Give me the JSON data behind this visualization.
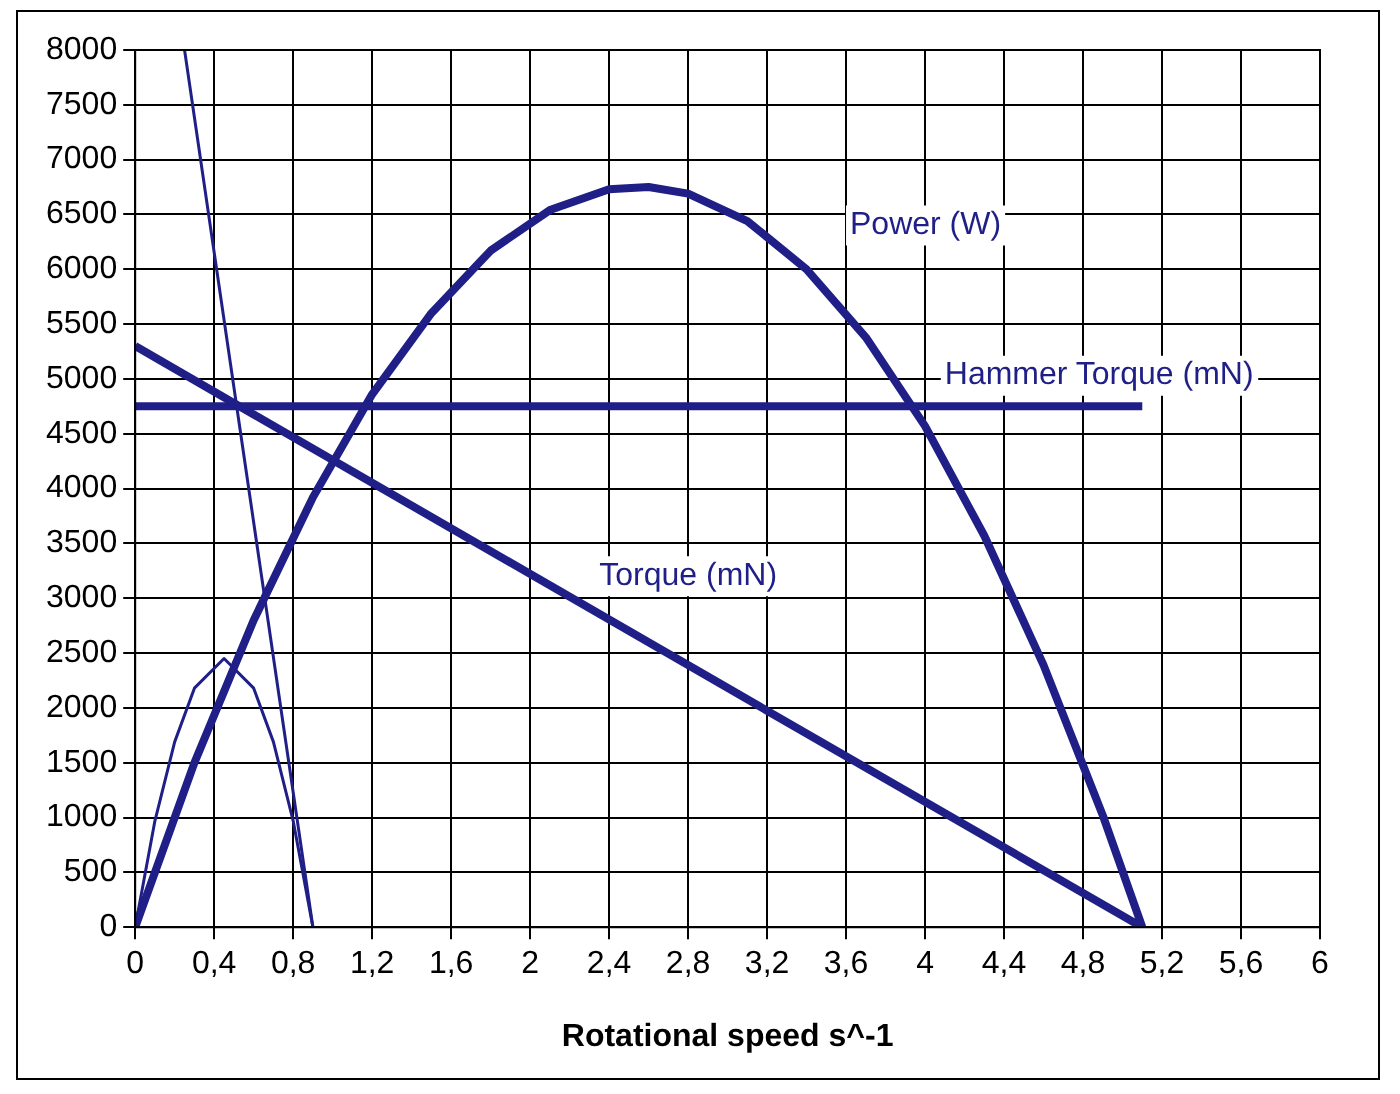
{
  "chart_data": {
    "type": "line",
    "xlabel": "Rotational speed s^-1",
    "xlim": [
      0,
      6
    ],
    "ylim": [
      0,
      8000
    ],
    "xticks": [
      0,
      {
        "value": 0.4,
        "label": "0,4"
      },
      {
        "value": 0.8,
        "label": "0,8"
      },
      {
        "value": 1.2,
        "label": "1,2"
      },
      {
        "value": 1.6,
        "label": "1,6"
      },
      2,
      {
        "value": 2.4,
        "label": "2,4"
      },
      {
        "value": 2.8,
        "label": "2,8"
      },
      {
        "value": 3.2,
        "label": "3,2"
      },
      {
        "value": 3.6,
        "label": "3,6"
      },
      4,
      {
        "value": 4.4,
        "label": "4,4"
      },
      {
        "value": 4.8,
        "label": "4,8"
      },
      {
        "value": 5.2,
        "label": "5,2"
      },
      {
        "value": 5.6,
        "label": "5,6"
      },
      6
    ],
    "yticks": [
      0,
      500,
      1000,
      1500,
      2000,
      2500,
      3000,
      3500,
      4000,
      4500,
      5000,
      5500,
      6000,
      6500,
      7000,
      7500,
      8000
    ],
    "grid": true,
    "legend": false,
    "marker": "none",
    "line_style": "solid",
    "series": [
      {
        "name": "Power (W)",
        "color": "#1f1f87",
        "x": [
          0,
          0.3,
          0.6,
          0.9,
          1.2,
          1.5,
          1.8,
          2.1,
          2.4,
          2.6,
          2.8,
          3.1,
          3.4,
          3.7,
          4.0,
          4.3,
          4.6,
          4.9,
          5.1
        ],
        "values": [
          0,
          1500,
          2800,
          3920,
          4860,
          5600,
          6170,
          6540,
          6730,
          6750,
          6690,
          6440,
          6000,
          5380,
          4570,
          3570,
          2390,
          1020,
          0
        ]
      },
      {
        "name": "Torque (mN)",
        "color": "#1f1f87",
        "x": [
          0,
          5.1
        ],
        "values": [
          5300,
          0
        ]
      },
      {
        "name": "Hammer Torque (mN)",
        "color": "#1f1f87",
        "x": [
          0,
          5.1
        ],
        "values": [
          4750,
          4750
        ]
      },
      {
        "color": "#1f1f87",
        "x": [
          0.25,
          0.9
        ],
        "values": [
          8000,
          0
        ]
      },
      {
        "color": "#1f1f87",
        "x": [
          0,
          0.1,
          0.2,
          0.3,
          0.45,
          0.6,
          0.7,
          0.8,
          0.9
        ],
        "values": [
          0,
          970,
          1690,
          2180,
          2450,
          2180,
          1690,
          970,
          0
        ]
      }
    ]
  }
}
